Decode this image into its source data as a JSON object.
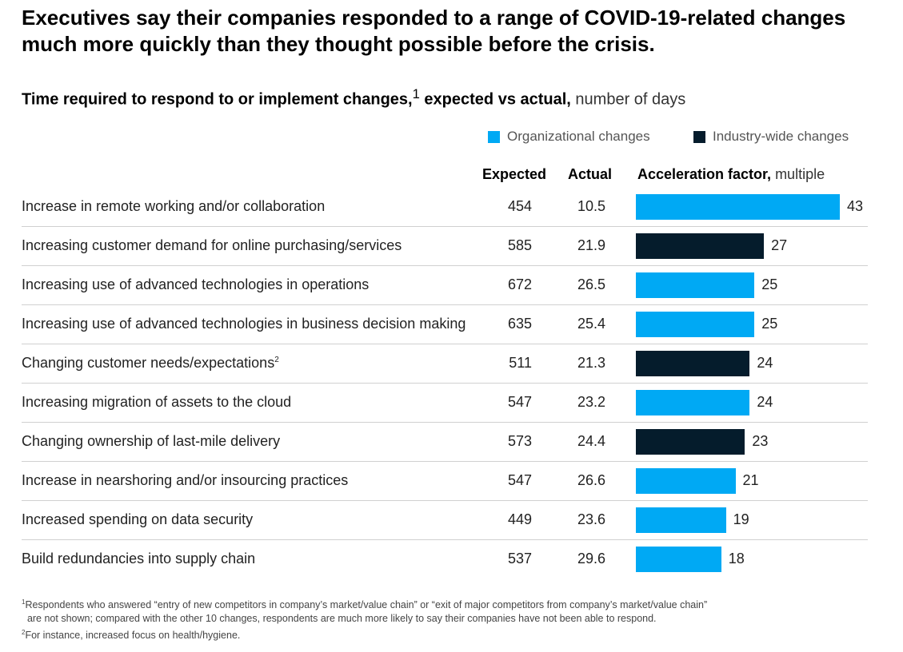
{
  "title": "Executives say their companies responded to a range of COVID-19-related changes much more quickly than they thought possible before the crisis.",
  "subtitle": {
    "bold": "Time required to respond to or implement changes,",
    "sup": "1",
    "bold2": " expected vs actual,",
    "light": " number of days"
  },
  "legend": [
    {
      "label": "Organizational changes",
      "color": "#00a9f4"
    },
    {
      "label": "Industry-wide changes",
      "color": "#051c2c"
    }
  ],
  "columns": {
    "expected": "Expected",
    "actual": "Actual",
    "accel_bold": "Acceleration factor,",
    "accel_light": " multiple"
  },
  "chart_data": {
    "type": "table",
    "title": "Time required to respond to or implement changes, expected vs actual, number of days",
    "xlabel": "Acceleration factor, multiple",
    "rows": [
      {
        "label": "Increase in remote working and/or collaboration",
        "sup": "",
        "expected": "454",
        "actual": "10.5",
        "factor": 43,
        "series": "Organizational changes"
      },
      {
        "label": "Increasing customer demand for online purchasing/services",
        "sup": "",
        "expected": "585",
        "actual": "21.9",
        "factor": 27,
        "series": "Industry-wide changes"
      },
      {
        "label": "Increasing use of advanced technologies in operations",
        "sup": "",
        "expected": "672",
        "actual": "26.5",
        "factor": 25,
        "series": "Organizational changes"
      },
      {
        "label": "Increasing use of advanced technologies in business decision making",
        "sup": "",
        "expected": "635",
        "actual": "25.4",
        "factor": 25,
        "series": "Organizational changes"
      },
      {
        "label": "Changing customer needs/expectations",
        "sup": "2",
        "expected": "511",
        "actual": "21.3",
        "factor": 24,
        "series": "Industry-wide changes"
      },
      {
        "label": "Increasing migration of assets to the cloud",
        "sup": "",
        "expected": "547",
        "actual": "23.2",
        "factor": 24,
        "series": "Organizational changes"
      },
      {
        "label": "Changing ownership of last-mile delivery",
        "sup": "",
        "expected": "573",
        "actual": "24.4",
        "factor": 23,
        "series": "Industry-wide changes"
      },
      {
        "label": "Increase in nearshoring and/or insourcing practices",
        "sup": "",
        "expected": "547",
        "actual": "26.6",
        "factor": 21,
        "series": "Organizational changes"
      },
      {
        "label": "Increased spending on data security",
        "sup": "",
        "expected": "449",
        "actual": "23.6",
        "factor": 19,
        "series": "Organizational changes"
      },
      {
        "label": "Build redundancies into supply chain",
        "sup": "",
        "expected": "537",
        "actual": "29.6",
        "factor": 18,
        "series": "Organizational changes"
      }
    ]
  },
  "footnotes": [
    {
      "sup": "1",
      "text": "Respondents who answered “entry of new competitors in company’s market/value chain” or “exit of major competitors from company’s market/value chain”"
    },
    {
      "sup": "",
      "text": "  are not shown; compared with the other 10 changes, respondents are much more likely to say their companies have not been able to respond."
    },
    {
      "sup": "2",
      "text": "For instance, increased focus on health/hygiene."
    }
  ]
}
